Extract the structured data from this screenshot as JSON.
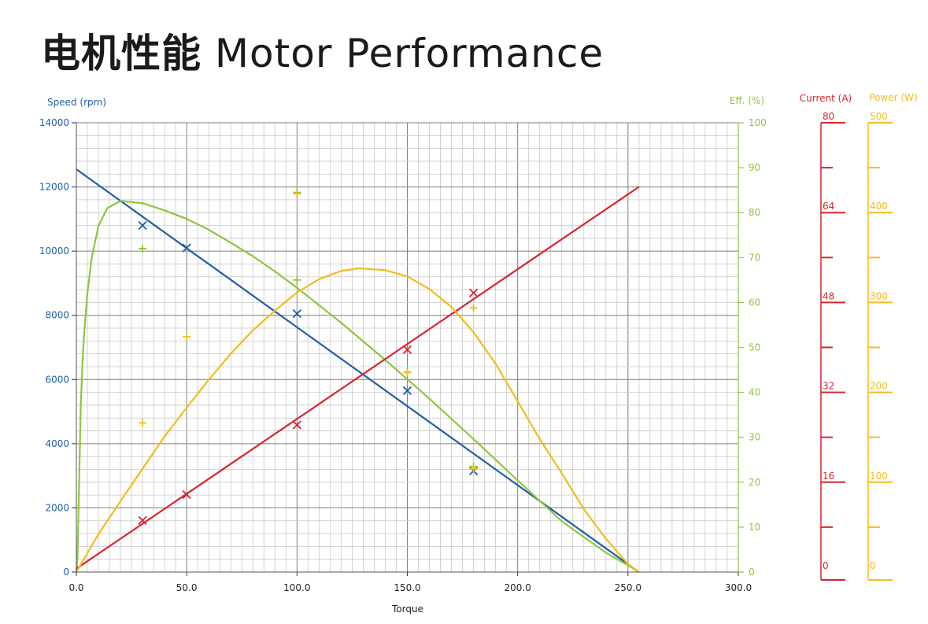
{
  "title_cn": "电机性能",
  "title_en": "Motor Performance",
  "chart_data": {
    "type": "line",
    "title": "电机性能 Motor Performance",
    "xlabel": "Torque",
    "xlim": [
      0,
      300
    ],
    "x_ticks": [
      0,
      50,
      100,
      150,
      200,
      250,
      300
    ],
    "x_tick_labels": [
      "0.0",
      "50.0",
      "100.0",
      "150.0",
      "200.0",
      "250.0",
      "300.0"
    ],
    "grid": true,
    "axes": {
      "speed": {
        "label": "Speed (rpm)",
        "range": [
          0,
          14000
        ],
        "ticks": [
          0,
          2000,
          4000,
          6000,
          8000,
          10000,
          12000,
          14000
        ],
        "color": "#1f5fa6"
      },
      "eff": {
        "label": "Eff. (%)",
        "range": [
          0,
          100
        ],
        "ticks": [
          0,
          10,
          20,
          30,
          40,
          50,
          60,
          70,
          80,
          90,
          100
        ],
        "color": "#8dc63f"
      },
      "current": {
        "label": "Current (A)",
        "range": [
          0,
          80
        ],
        "ticks": [
          0,
          16,
          32,
          48,
          64,
          80
        ],
        "color": "#d7262e"
      },
      "power": {
        "label": "Power (W)",
        "range": [
          0,
          500
        ],
        "ticks": [
          0,
          100,
          200,
          300,
          400,
          500
        ],
        "color": "#f3bb1c"
      }
    },
    "series": [
      {
        "name": "Speed (rpm)",
        "axis": "speed",
        "color": "#1f5fa6",
        "marker": "x",
        "line": [
          [
            0,
            12550
          ],
          [
            255,
            0
          ]
        ],
        "points": [
          [
            30,
            10800
          ],
          [
            50,
            10100
          ],
          [
            100,
            8050
          ],
          [
            150,
            5650
          ],
          [
            180,
            3150
          ]
        ]
      },
      {
        "name": "Eff. (%)",
        "axis": "eff",
        "color": "#8dc63f",
        "marker": "+",
        "line": [
          [
            0,
            0
          ],
          [
            0.5,
            3
          ],
          [
            1,
            14
          ],
          [
            2,
            37
          ],
          [
            3,
            49
          ],
          [
            4,
            56
          ],
          [
            5,
            62
          ],
          [
            7,
            70
          ],
          [
            10,
            77
          ],
          [
            14,
            81
          ],
          [
            20,
            82.6
          ],
          [
            30,
            82.1
          ],
          [
            40,
            80.5
          ],
          [
            50,
            78.6
          ],
          [
            60,
            76.2
          ],
          [
            70,
            73.3
          ],
          [
            80,
            70.3
          ],
          [
            90,
            66.9
          ],
          [
            100,
            63.3
          ],
          [
            120,
            55.5
          ],
          [
            140,
            47.2
          ],
          [
            160,
            38.6
          ],
          [
            180,
            29.6
          ],
          [
            200,
            20.4
          ],
          [
            220,
            11.3
          ],
          [
            240,
            4.3
          ],
          [
            250,
            1.5
          ],
          [
            255,
            0
          ]
        ],
        "points": [
          [
            30,
            72
          ],
          [
            100,
            65
          ],
          [
            150,
            44.5
          ],
          [
            180,
            23.5
          ],
          [
            100,
            84.5
          ]
        ]
      },
      {
        "name": "Current (A)",
        "axis": "current",
        "color": "#d7262e",
        "marker": "x",
        "line": [
          [
            0,
            0.6
          ],
          [
            255,
            68.6
          ]
        ],
        "points": [
          [
            30,
            9.2
          ],
          [
            50,
            13.8
          ],
          [
            100,
            26.2
          ],
          [
            150,
            39.6
          ],
          [
            180,
            49.7
          ]
        ]
      },
      {
        "name": "Power (W)",
        "axis": "power",
        "color": "#f3bb1c",
        "marker": "+",
        "line": [
          [
            0,
            0
          ],
          [
            10,
            42
          ],
          [
            20,
            79
          ],
          [
            30,
            115
          ],
          [
            40,
            151
          ],
          [
            50,
            183
          ],
          [
            60,
            214
          ],
          [
            70,
            243
          ],
          [
            80,
            269
          ],
          [
            90,
            291
          ],
          [
            100,
            311
          ],
          [
            110,
            326
          ],
          [
            120,
            335
          ],
          [
            128,
            338
          ],
          [
            140,
            336
          ],
          [
            150,
            329
          ],
          [
            160,
            315
          ],
          [
            170,
            295
          ],
          [
            180,
            267
          ],
          [
            190,
            232
          ],
          [
            200,
            190
          ],
          [
            210,
            148
          ],
          [
            220,
            110
          ],
          [
            230,
            70
          ],
          [
            240,
            37
          ],
          [
            250,
            9
          ],
          [
            255,
            0
          ]
        ],
        "points": [
          [
            30,
            166
          ],
          [
            50,
            262
          ],
          [
            100,
            421
          ],
          [
            180,
            294
          ],
          [
            150,
            222
          ],
          [
            180,
            115
          ]
        ]
      }
    ]
  }
}
